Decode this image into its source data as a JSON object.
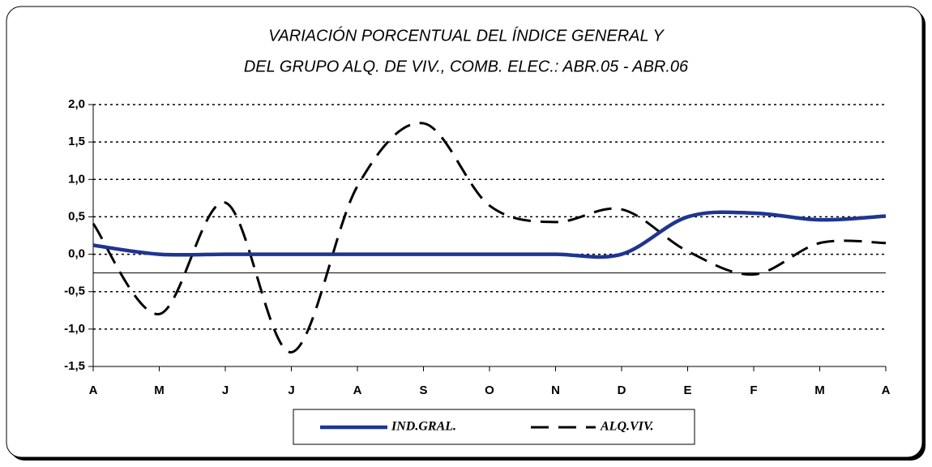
{
  "chart_data": {
    "type": "line",
    "title_lines": [
      "VARIACIÓN PORCENTUAL DEL ÍNDICE GENERAL Y",
      "DEL GRUPO ALQ. DE VIV., COMB. ELEC.:  ABR.05 - ABR.06"
    ],
    "categories": [
      "A",
      "M",
      "J",
      "J",
      "A",
      "S",
      "O",
      "N",
      "D",
      "E",
      "F",
      "M",
      "A"
    ],
    "series": [
      {
        "name": "IND.GRAL.",
        "color": "#1f3593",
        "style": "solid",
        "values": [
          0.12,
          0.0,
          0.0,
          0.0,
          0.0,
          0.0,
          0.0,
          0.0,
          0.0,
          0.5,
          0.55,
          0.46,
          0.51
        ]
      },
      {
        "name": "ALQ.VIV.",
        "color": "#000000",
        "style": "dashed",
        "values": [
          0.41,
          -0.8,
          0.69,
          -1.31,
          0.91,
          1.75,
          0.65,
          0.43,
          0.6,
          0.04,
          -0.27,
          0.15,
          0.15
        ]
      }
    ],
    "ylim": [
      -1.5,
      2.0
    ],
    "yticks": [
      {
        "value": -1.5,
        "label": "-1,5"
      },
      {
        "value": -1.0,
        "label": "-1,0"
      },
      {
        "value": -0.5,
        "label": "-0,5"
      },
      {
        "value": 0.0,
        "label": "0,0"
      },
      {
        "value": 0.5,
        "label": "0,5"
      },
      {
        "value": 1.0,
        "label": "1,0"
      },
      {
        "value": 1.5,
        "label": "1,5"
      },
      {
        "value": 2.0,
        "label": "2,0"
      }
    ],
    "x_axis_at": -0.25,
    "grid": true,
    "smooth": true,
    "legend": "bottom"
  }
}
